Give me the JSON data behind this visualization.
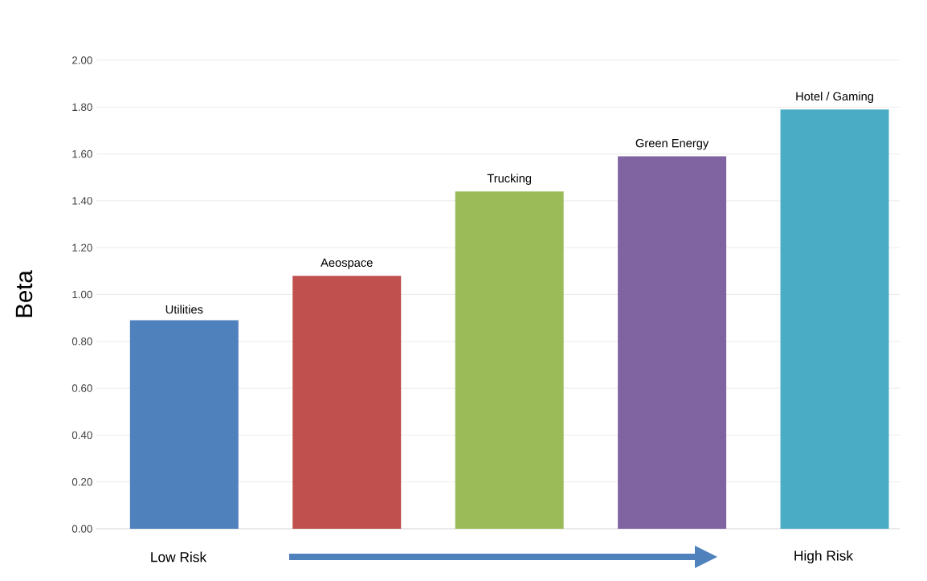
{
  "chart_data": {
    "type": "bar",
    "ylabel": "Beta",
    "categories": [
      "Utilities",
      "Aeospace",
      "Trucking",
      "Green Energy",
      "Hotel / Gaming"
    ],
    "values": [
      0.89,
      1.08,
      1.44,
      1.59,
      1.79
    ],
    "colors": [
      "#4f81bd",
      "#c0504d",
      "#9bbb59",
      "#8064a2",
      "#4bacc6"
    ],
    "ylim": [
      0,
      2
    ],
    "yticks": [
      {
        "value": 0,
        "label": "0.00"
      },
      {
        "value": 0.2,
        "label": "0.20"
      },
      {
        "value": 0.4,
        "label": "0.40"
      },
      {
        "value": 0.6,
        "label": "0.60"
      },
      {
        "value": 0.8,
        "label": "0.80"
      },
      {
        "value": 1,
        "label": "1.00"
      },
      {
        "value": 1.2,
        "label": "1.20"
      },
      {
        "value": 1.4,
        "label": "1.40"
      },
      {
        "value": 1.6,
        "label": "1.60"
      },
      {
        "value": 1.8,
        "label": "1.80"
      },
      {
        "value": 2,
        "label": "2.00"
      }
    ],
    "grid": "y",
    "annotations": [
      "Low Risk",
      "High Risk"
    ]
  }
}
